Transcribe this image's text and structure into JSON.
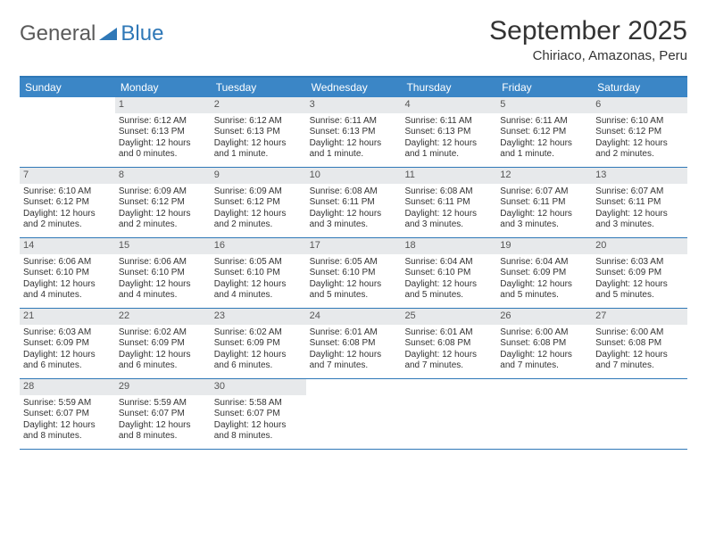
{
  "logo": {
    "general": "General",
    "blue": "Blue"
  },
  "title": "September 2025",
  "location": "Chiriaco, Amazonas, Peru",
  "colors": {
    "brand_blue": "#3b86c6",
    "border_blue": "#2f78b7",
    "daynum_bg": "#e7e9eb",
    "text": "#333333",
    "logo_gray": "#5a5a5a"
  },
  "day_headers": [
    "Sunday",
    "Monday",
    "Tuesday",
    "Wednesday",
    "Thursday",
    "Friday",
    "Saturday"
  ],
  "weeks": [
    [
      null,
      {
        "n": "1",
        "sr": "Sunrise: 6:12 AM",
        "ss": "Sunset: 6:13 PM",
        "dl1": "Daylight: 12 hours",
        "dl2": "and 0 minutes."
      },
      {
        "n": "2",
        "sr": "Sunrise: 6:12 AM",
        "ss": "Sunset: 6:13 PM",
        "dl1": "Daylight: 12 hours",
        "dl2": "and 1 minute."
      },
      {
        "n": "3",
        "sr": "Sunrise: 6:11 AM",
        "ss": "Sunset: 6:13 PM",
        "dl1": "Daylight: 12 hours",
        "dl2": "and 1 minute."
      },
      {
        "n": "4",
        "sr": "Sunrise: 6:11 AM",
        "ss": "Sunset: 6:13 PM",
        "dl1": "Daylight: 12 hours",
        "dl2": "and 1 minute."
      },
      {
        "n": "5",
        "sr": "Sunrise: 6:11 AM",
        "ss": "Sunset: 6:12 PM",
        "dl1": "Daylight: 12 hours",
        "dl2": "and 1 minute."
      },
      {
        "n": "6",
        "sr": "Sunrise: 6:10 AM",
        "ss": "Sunset: 6:12 PM",
        "dl1": "Daylight: 12 hours",
        "dl2": "and 2 minutes."
      }
    ],
    [
      {
        "n": "7",
        "sr": "Sunrise: 6:10 AM",
        "ss": "Sunset: 6:12 PM",
        "dl1": "Daylight: 12 hours",
        "dl2": "and 2 minutes."
      },
      {
        "n": "8",
        "sr": "Sunrise: 6:09 AM",
        "ss": "Sunset: 6:12 PM",
        "dl1": "Daylight: 12 hours",
        "dl2": "and 2 minutes."
      },
      {
        "n": "9",
        "sr": "Sunrise: 6:09 AM",
        "ss": "Sunset: 6:12 PM",
        "dl1": "Daylight: 12 hours",
        "dl2": "and 2 minutes."
      },
      {
        "n": "10",
        "sr": "Sunrise: 6:08 AM",
        "ss": "Sunset: 6:11 PM",
        "dl1": "Daylight: 12 hours",
        "dl2": "and 3 minutes."
      },
      {
        "n": "11",
        "sr": "Sunrise: 6:08 AM",
        "ss": "Sunset: 6:11 PM",
        "dl1": "Daylight: 12 hours",
        "dl2": "and 3 minutes."
      },
      {
        "n": "12",
        "sr": "Sunrise: 6:07 AM",
        "ss": "Sunset: 6:11 PM",
        "dl1": "Daylight: 12 hours",
        "dl2": "and 3 minutes."
      },
      {
        "n": "13",
        "sr": "Sunrise: 6:07 AM",
        "ss": "Sunset: 6:11 PM",
        "dl1": "Daylight: 12 hours",
        "dl2": "and 3 minutes."
      }
    ],
    [
      {
        "n": "14",
        "sr": "Sunrise: 6:06 AM",
        "ss": "Sunset: 6:10 PM",
        "dl1": "Daylight: 12 hours",
        "dl2": "and 4 minutes."
      },
      {
        "n": "15",
        "sr": "Sunrise: 6:06 AM",
        "ss": "Sunset: 6:10 PM",
        "dl1": "Daylight: 12 hours",
        "dl2": "and 4 minutes."
      },
      {
        "n": "16",
        "sr": "Sunrise: 6:05 AM",
        "ss": "Sunset: 6:10 PM",
        "dl1": "Daylight: 12 hours",
        "dl2": "and 4 minutes."
      },
      {
        "n": "17",
        "sr": "Sunrise: 6:05 AM",
        "ss": "Sunset: 6:10 PM",
        "dl1": "Daylight: 12 hours",
        "dl2": "and 5 minutes."
      },
      {
        "n": "18",
        "sr": "Sunrise: 6:04 AM",
        "ss": "Sunset: 6:10 PM",
        "dl1": "Daylight: 12 hours",
        "dl2": "and 5 minutes."
      },
      {
        "n": "19",
        "sr": "Sunrise: 6:04 AM",
        "ss": "Sunset: 6:09 PM",
        "dl1": "Daylight: 12 hours",
        "dl2": "and 5 minutes."
      },
      {
        "n": "20",
        "sr": "Sunrise: 6:03 AM",
        "ss": "Sunset: 6:09 PM",
        "dl1": "Daylight: 12 hours",
        "dl2": "and 5 minutes."
      }
    ],
    [
      {
        "n": "21",
        "sr": "Sunrise: 6:03 AM",
        "ss": "Sunset: 6:09 PM",
        "dl1": "Daylight: 12 hours",
        "dl2": "and 6 minutes."
      },
      {
        "n": "22",
        "sr": "Sunrise: 6:02 AM",
        "ss": "Sunset: 6:09 PM",
        "dl1": "Daylight: 12 hours",
        "dl2": "and 6 minutes."
      },
      {
        "n": "23",
        "sr": "Sunrise: 6:02 AM",
        "ss": "Sunset: 6:09 PM",
        "dl1": "Daylight: 12 hours",
        "dl2": "and 6 minutes."
      },
      {
        "n": "24",
        "sr": "Sunrise: 6:01 AM",
        "ss": "Sunset: 6:08 PM",
        "dl1": "Daylight: 12 hours",
        "dl2": "and 7 minutes."
      },
      {
        "n": "25",
        "sr": "Sunrise: 6:01 AM",
        "ss": "Sunset: 6:08 PM",
        "dl1": "Daylight: 12 hours",
        "dl2": "and 7 minutes."
      },
      {
        "n": "26",
        "sr": "Sunrise: 6:00 AM",
        "ss": "Sunset: 6:08 PM",
        "dl1": "Daylight: 12 hours",
        "dl2": "and 7 minutes."
      },
      {
        "n": "27",
        "sr": "Sunrise: 6:00 AM",
        "ss": "Sunset: 6:08 PM",
        "dl1": "Daylight: 12 hours",
        "dl2": "and 7 minutes."
      }
    ],
    [
      {
        "n": "28",
        "sr": "Sunrise: 5:59 AM",
        "ss": "Sunset: 6:07 PM",
        "dl1": "Daylight: 12 hours",
        "dl2": "and 8 minutes."
      },
      {
        "n": "29",
        "sr": "Sunrise: 5:59 AM",
        "ss": "Sunset: 6:07 PM",
        "dl1": "Daylight: 12 hours",
        "dl2": "and 8 minutes."
      },
      {
        "n": "30",
        "sr": "Sunrise: 5:58 AM",
        "ss": "Sunset: 6:07 PM",
        "dl1": "Daylight: 12 hours",
        "dl2": "and 8 minutes."
      },
      null,
      null,
      null,
      null
    ]
  ]
}
